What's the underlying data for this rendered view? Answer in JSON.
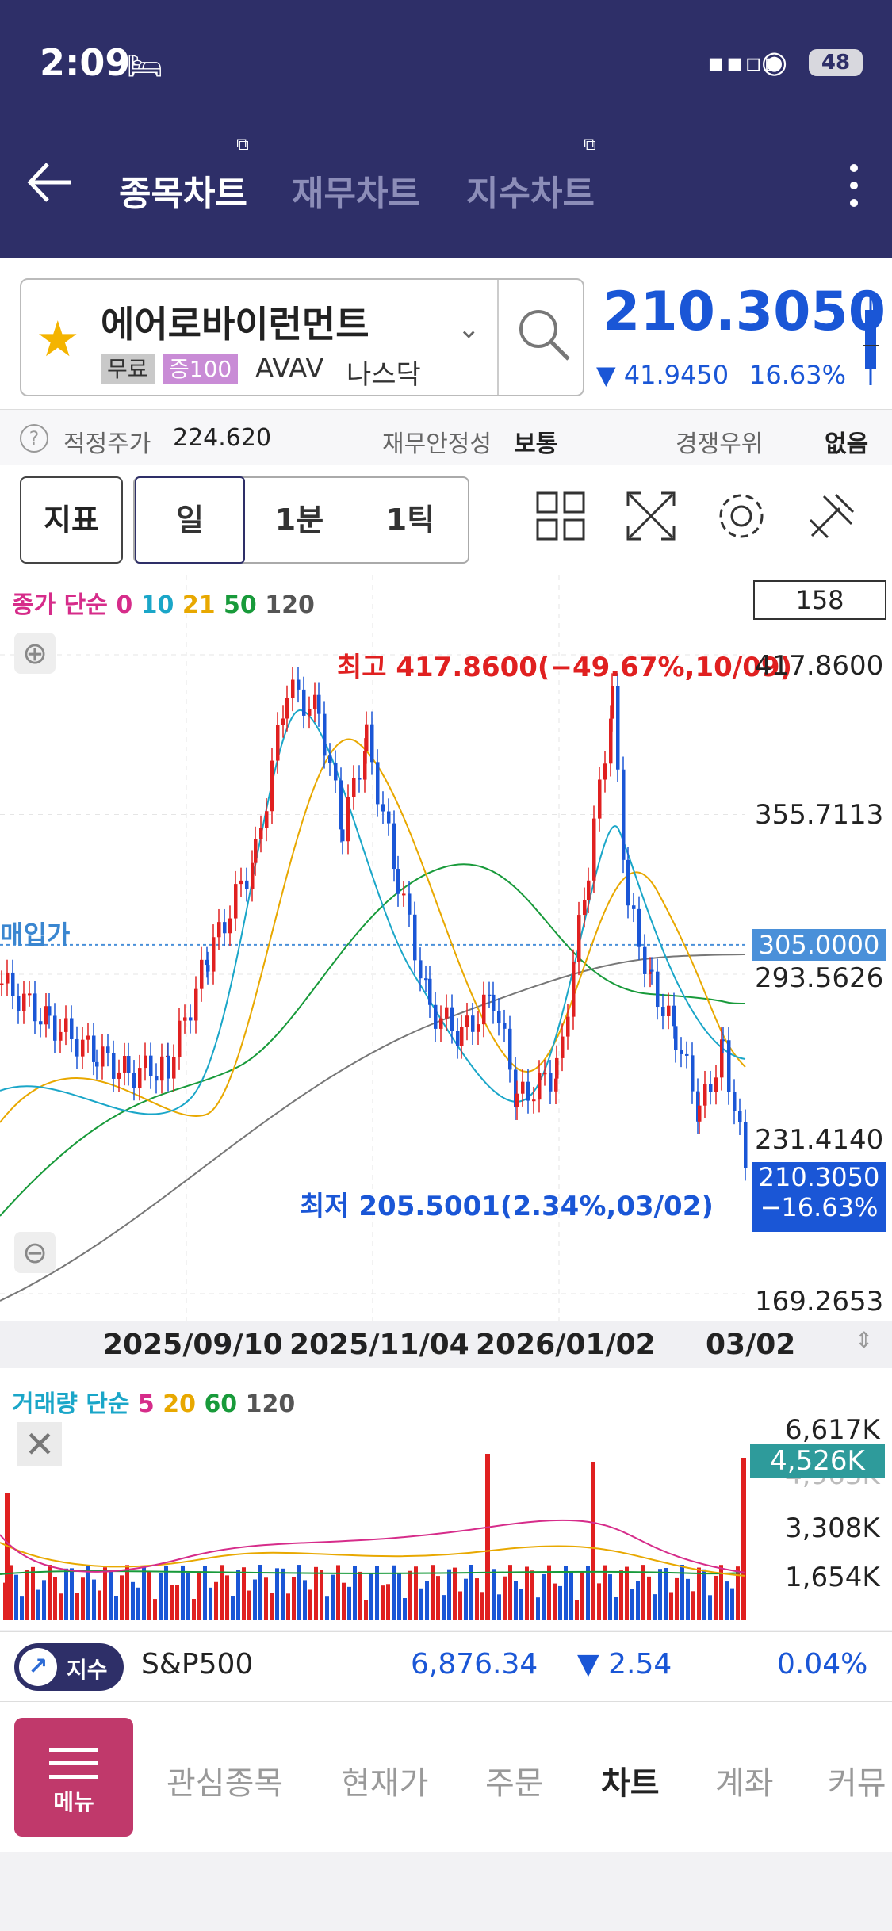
{
  "status": {
    "time": "2:09",
    "battery": "48"
  },
  "header": {
    "tabs": [
      {
        "label": "종목차트",
        "active": true
      },
      {
        "label": "재무차트",
        "active": false
      },
      {
        "label": "지수차트",
        "active": false
      }
    ]
  },
  "stock": {
    "name": "에어로바이런먼트",
    "tag_free": "무료",
    "tag_margin": "증100",
    "ticker": "AVAV",
    "exchange": "나스닥",
    "price": "210.3050",
    "change": "41.9450",
    "change_pct": "16.63%",
    "colors": {
      "down": "#1a56d6",
      "up": "#e02020"
    }
  },
  "info": {
    "fair_price_label": "적정주가",
    "fair_price": "224.620",
    "stability_label": "재무안정성",
    "stability": "보통",
    "competition_label": "경쟁우위",
    "competition": "없음"
  },
  "toolbar": {
    "indicator": "지표",
    "periods": [
      "일",
      "1분",
      "1틱"
    ],
    "active_period": "일"
  },
  "chart": {
    "legend_label": "종가 단순",
    "ma": [
      "0",
      "10",
      "21",
      "50",
      "120"
    ],
    "count_box": "158",
    "high_label": "최고 417.8600(−49.67%,10/09)",
    "low_label": "최저 205.5001(2.34%,03/02)",
    "buy_label": "매입가",
    "buy_price": "305.0000",
    "last_price": "210.3050",
    "last_pct": "−16.63%",
    "y_ticks": [
      "417.8600",
      "355.7113",
      "293.5626",
      "231.4140",
      "169.2653"
    ],
    "x_ticks": [
      "2025/09/10",
      "2025/11/04",
      "2026/01/02",
      "03/02"
    ]
  },
  "volume": {
    "legend_label": "거래량 단순",
    "ma": [
      "5",
      "20",
      "60",
      "120"
    ],
    "y_ticks": [
      "6,617K",
      "4,963K",
      "3,308K",
      "1,654K"
    ],
    "last": "4,526K"
  },
  "index": {
    "button": "지수",
    "name": "S&P500",
    "value": "6,876.34",
    "change": "2.54",
    "pct": "0.04%"
  },
  "nav": {
    "menu": "메뉴",
    "items": [
      {
        "label": "관심종목",
        "active": false
      },
      {
        "label": "현재가",
        "active": false
      },
      {
        "label": "주문",
        "active": false
      },
      {
        "label": "차트",
        "active": true
      },
      {
        "label": "계좌",
        "active": false
      },
      {
        "label": "커뮤",
        "active": false
      }
    ]
  },
  "chart_data": {
    "type": "candlestick",
    "x": [
      "2025/09/10",
      "2025/11/04",
      "2026/01/02",
      "03/02"
    ],
    "ylim": [
      169.2653,
      417.86
    ],
    "high": 417.86,
    "low": 205.5001,
    "last": 210.305,
    "buy_price": 305.0,
    "grid": true
  }
}
